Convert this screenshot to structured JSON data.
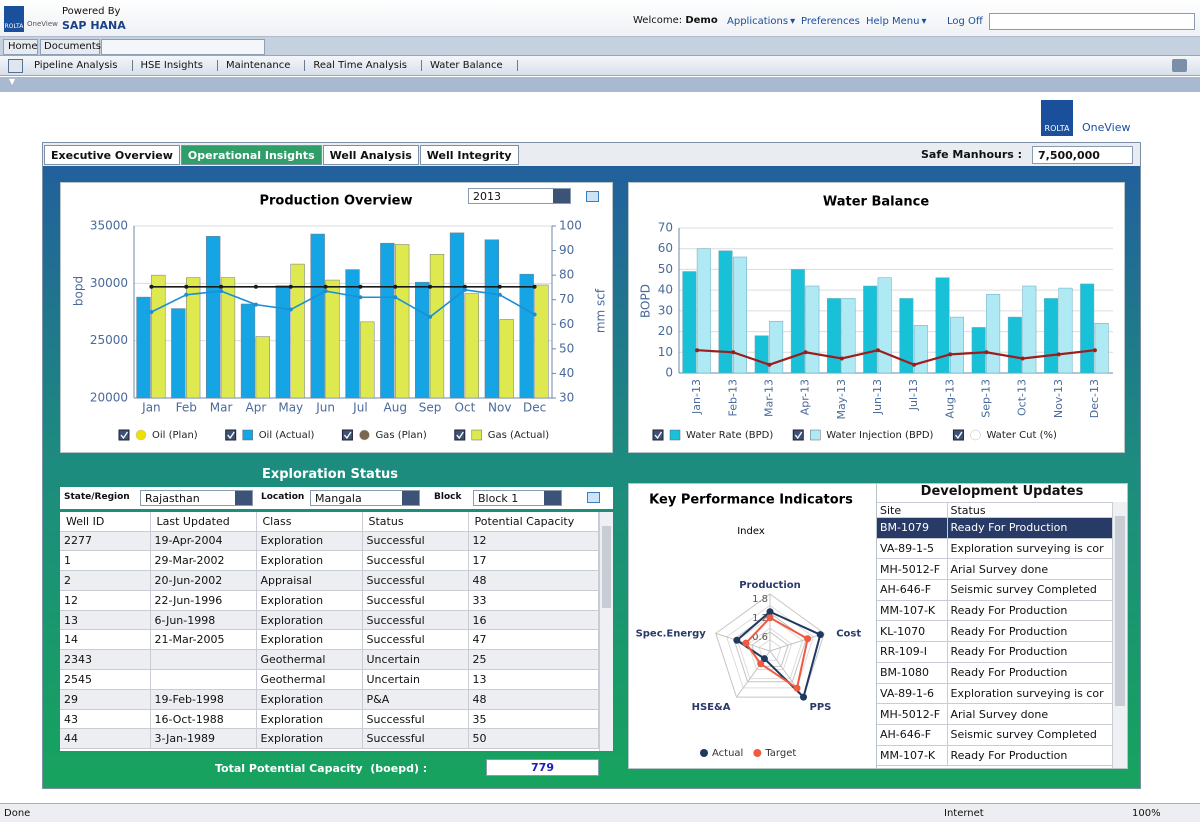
{
  "header": {
    "logo": "ROLTA",
    "oneview": "OneView",
    "powered_by": "Powered By",
    "product": "SAP HANA",
    "welcome": "Welcome:",
    "user": "Demo",
    "menu": [
      "Applications",
      "Preferences",
      "Help Menu",
      "Log Off"
    ]
  },
  "tabs": [
    "Home",
    "Documents"
  ],
  "nav": [
    "Pipeline Analysis",
    "HSE Insights",
    "Maintenance",
    "Real Time Analysis",
    "Water Balance"
  ],
  "brand": {
    "logo": "ROLTA",
    "oneview": "OneView"
  },
  "dash_tabs": [
    "Executive Overview",
    "Operational Insights",
    "Well Analysis",
    "Well Integrity"
  ],
  "safe_manhours": {
    "label": "Safe Manhours :",
    "value": "7,500,000"
  },
  "production": {
    "year": "2013",
    "chart_data": {
      "type": "bar",
      "title": "Production Overview",
      "y_label": "bopd",
      "y2_label": "mm scf",
      "categories": [
        "Jan",
        "Feb",
        "Mar",
        "Apr",
        "May",
        "Jun",
        "Jul",
        "Aug",
        "Sep",
        "Oct",
        "Nov",
        "Dec"
      ],
      "ylim": [
        20000,
        35000
      ],
      "yticks": [
        20000,
        25000,
        30000,
        35000
      ],
      "y2lim": [
        30,
        100
      ],
      "y2ticks": [
        30,
        40,
        50,
        60,
        70,
        80,
        90,
        100
      ],
      "grid": true,
      "series": [
        {
          "name": "Oil (Plan)",
          "kind": "line",
          "color": "#1a1a1a",
          "marker_color": "#f0e000",
          "values": [
            29700,
            29700,
            29700,
            29700,
            29700,
            29700,
            29700,
            29700,
            29700,
            29700,
            29700,
            29700
          ]
        },
        {
          "name": "Oil (Actual)",
          "kind": "bar",
          "color": "#16a5e4",
          "values": [
            28800,
            27800,
            34100,
            28200,
            29800,
            34300,
            31200,
            33500,
            30100,
            34400,
            33800,
            30800
          ]
        },
        {
          "name": "Gas (Plan)",
          "kind": "line",
          "axis": "y2",
          "color": "#1b8fd6",
          "marker_color": "#7b6650",
          "values": [
            65,
            72,
            73.5,
            68,
            66,
            73.5,
            71,
            71,
            63,
            74,
            72,
            64
          ]
        },
        {
          "name": "Gas (Actual)",
          "kind": "bar",
          "axis": "y2",
          "color": "#dde94e",
          "values": [
            80,
            79,
            79,
            55,
            84.5,
            78,
            61,
            92.5,
            88.5,
            72.5,
            62,
            76
          ]
        }
      ]
    }
  },
  "water": {
    "chart_data": {
      "type": "bar",
      "title": "Water Balance",
      "y_label": "BOPD",
      "categories": [
        "Jan-13",
        "Feb-13",
        "Mar-13",
        "Apr-13",
        "May-13",
        "Jun-13",
        "Jul-13",
        "Aug-13",
        "Sep-13",
        "Oct-13",
        "Nov-13",
        "Dec-13"
      ],
      "ylim": [
        0,
        70
      ],
      "yticks": [
        0,
        10,
        20,
        30,
        40,
        50,
        60,
        70
      ],
      "grid": true,
      "series": [
        {
          "name": "Water Rate (BPD)",
          "kind": "bar",
          "color": "#19c1d8",
          "values": [
            49,
            59,
            18,
            50,
            36,
            42,
            36,
            46,
            22,
            27,
            36,
            43
          ]
        },
        {
          "name": "Water Injection (BPD)",
          "kind": "bar",
          "color": "#aee9f4",
          "values": [
            60,
            56,
            25,
            42,
            36,
            46,
            23,
            27,
            38,
            42,
            41,
            24
          ]
        },
        {
          "name": "Water Cut (%)",
          "kind": "line",
          "color": "#9e1c1c",
          "marker_color": "#ffffff",
          "values": [
            11,
            10,
            4,
            10,
            7,
            11,
            4,
            9,
            10,
            7,
            9,
            11
          ]
        }
      ]
    }
  },
  "exploration": {
    "title": "Exploration Status",
    "filters": [
      {
        "label": "State/Region",
        "value": "Rajasthan"
      },
      {
        "label": "Location",
        "value": "Mangala"
      },
      {
        "label": "Block",
        "value": "Block 1"
      }
    ],
    "columns": [
      "Well ID",
      "Last Updated",
      "Class",
      "Status",
      "Potential Capacity"
    ],
    "rows": [
      [
        "2277",
        "19-Apr-2004",
        "Exploration",
        "Successful",
        12
      ],
      [
        "1",
        "29-Mar-2002",
        "Exploration",
        "Successful",
        17
      ],
      [
        "2",
        "20-Jun-2002",
        "Appraisal",
        "Successful",
        48
      ],
      [
        "12",
        "22-Jun-1996",
        "Exploration",
        "Successful",
        33
      ],
      [
        "13",
        "6-Jun-1998",
        "Exploration",
        "Successful",
        16
      ],
      [
        "14",
        "21-Mar-2005",
        "Exploration",
        "Successful",
        47
      ],
      [
        "2343",
        null,
        "Geothermal",
        "Uncertain",
        25
      ],
      [
        "2545",
        null,
        "Geothermal",
        "Uncertain",
        13
      ],
      [
        "29",
        "19-Feb-1998",
        "Exploration",
        "P&A",
        48
      ],
      [
        "43",
        "16-Oct-1988",
        "Exploration",
        "Successful",
        35
      ],
      [
        "44",
        "3-Jan-1989",
        "Exploration",
        "Successful",
        50
      ]
    ],
    "total_label": "Total Potential Capacity  (boepd) :",
    "total_value": 779
  },
  "kpi": {
    "chart_data": {
      "type": "radar",
      "title": "Key Performance Indicators",
      "subtitle": "Index",
      "axes": [
        "Production",
        "Cost",
        "PPS",
        "HSE&A",
        "Spec.Energy"
      ],
      "rlim": [
        0,
        1.8
      ],
      "rticks": [
        0.6,
        1.2,
        1.8
      ],
      "series": [
        {
          "name": "Actual",
          "color": "#1f3a5f",
          "values": [
            1.24,
            1.67,
            1.8,
            0.3,
            1.1
          ]
        },
        {
          "name": "Target",
          "color": "#f05a40",
          "values": [
            1.05,
            1.25,
            1.45,
            0.5,
            0.8
          ]
        }
      ]
    }
  },
  "dev_updates": {
    "title": "Development Updates",
    "columns": [
      "Site",
      "Status"
    ],
    "rows": [
      [
        "BM-1079",
        "Ready For Production"
      ],
      [
        "VA-89-1-5",
        "Exploration surveying is cor"
      ],
      [
        "MH-5012-F",
        "Arial Survey done"
      ],
      [
        "AH-646-F",
        "Seismic survey Completed"
      ],
      [
        "MM-107-K",
        "Ready For Production"
      ],
      [
        "KL-1070",
        "Ready For Production"
      ],
      [
        "RR-109-I",
        "Ready For Production"
      ],
      [
        "BM-1080",
        "Ready For Production"
      ],
      [
        "VA-89-1-6",
        "Exploration surveying is cor"
      ],
      [
        "MH-5012-F",
        "Arial Survey done"
      ],
      [
        "AH-646-F",
        "Seismic survey Completed"
      ],
      [
        "MM-107-K",
        "Ready For Production"
      ]
    ]
  },
  "status_bar": {
    "left": "Done",
    "zone": "Internet",
    "zoom": "100%"
  }
}
